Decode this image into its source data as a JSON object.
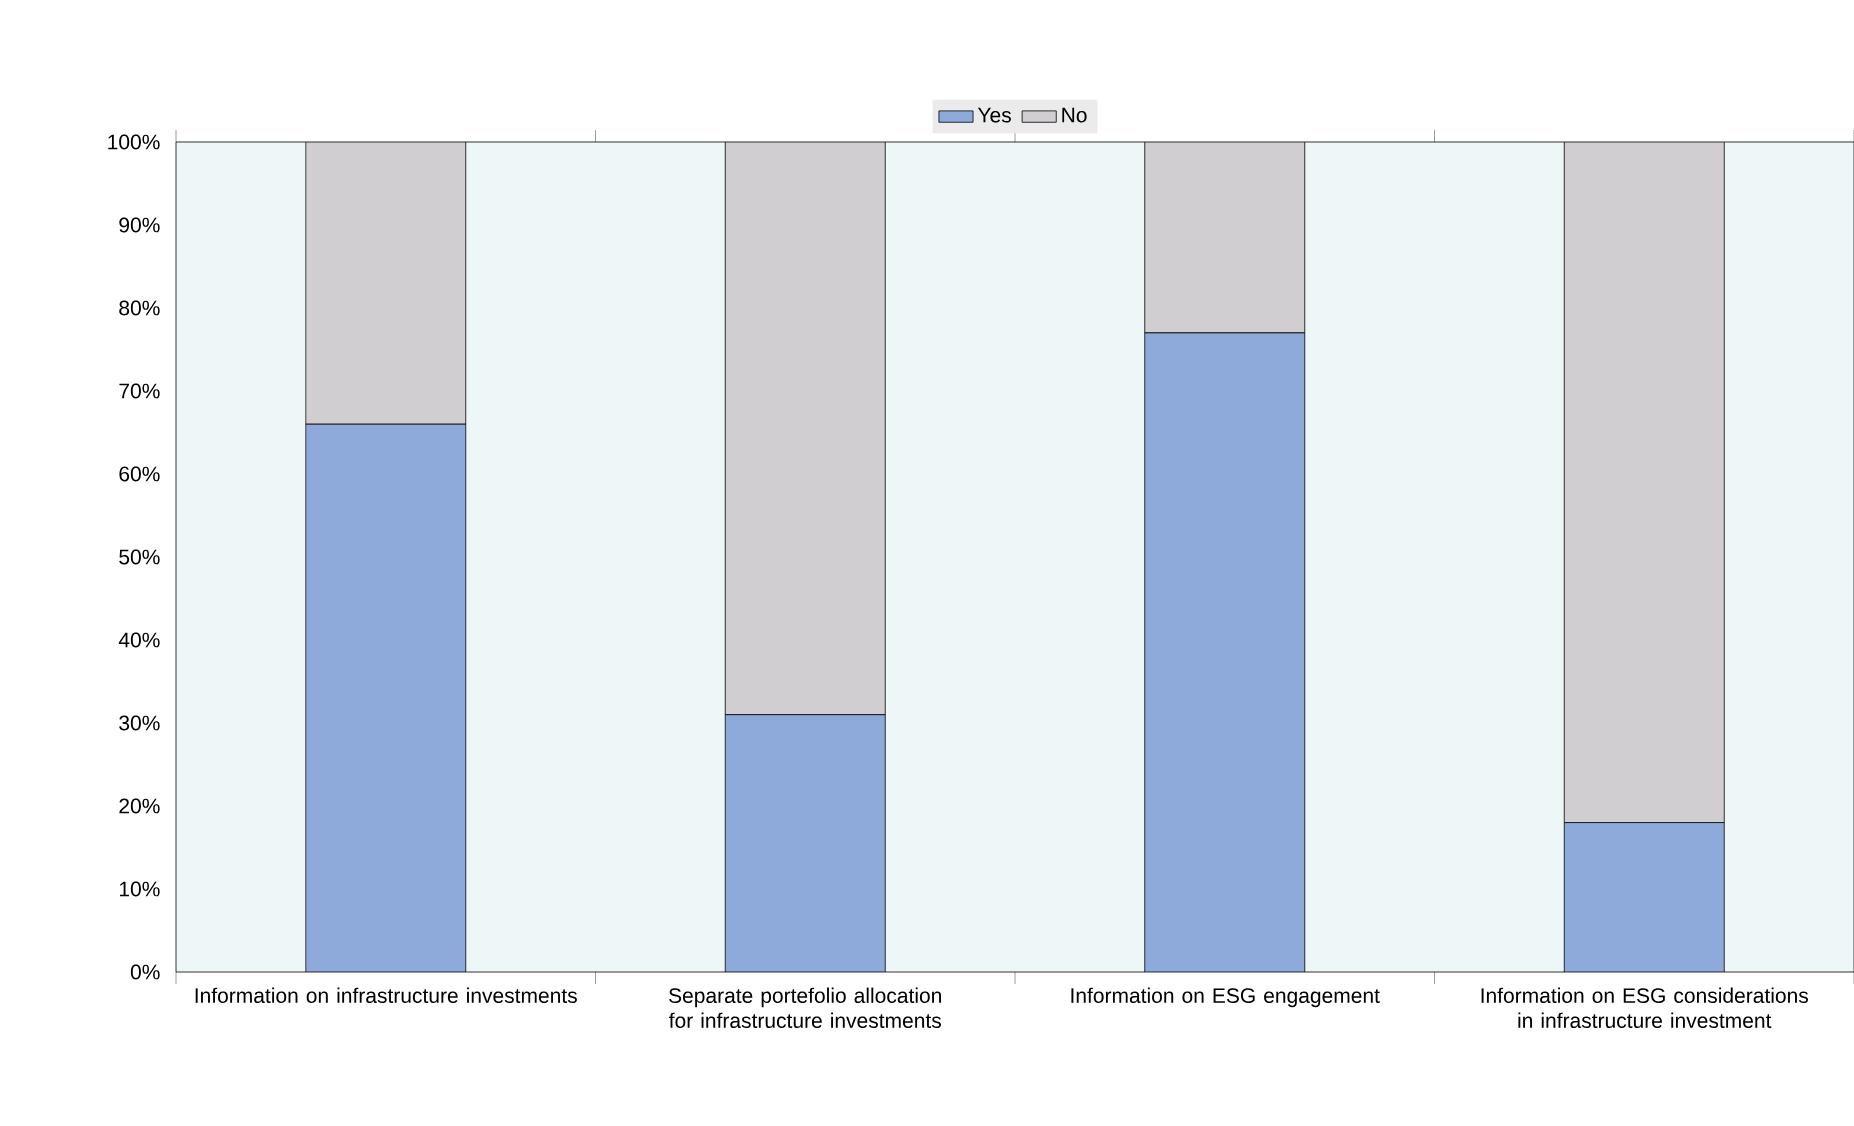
{
  "chart_data": {
    "type": "bar",
    "stacked": true,
    "categories": [
      "Information on infrastructure investments",
      "Separate portefolio allocation for infrastructure investments",
      "Information on ESG engagement",
      "Information on ESG considerations in infrastructure investment"
    ],
    "series": [
      {
        "name": "Yes",
        "color": "#8eaadb",
        "values": [
          66,
          31,
          77,
          18
        ]
      },
      {
        "name": "No",
        "color": "#d0ced0",
        "values": [
          34,
          69,
          23,
          82
        ]
      }
    ],
    "ylim": [
      0,
      100
    ],
    "yticks": [
      {
        "value": 0,
        "label": "0%"
      },
      {
        "value": 10,
        "label": "10%"
      },
      {
        "value": 20,
        "label": "20%"
      },
      {
        "value": 30,
        "label": "30%"
      },
      {
        "value": 40,
        "label": "40%"
      },
      {
        "value": 50,
        "label": "50%"
      },
      {
        "value": 60,
        "label": "60%"
      },
      {
        "value": 70,
        "label": "70%"
      },
      {
        "value": 80,
        "label": "80%"
      },
      {
        "value": 90,
        "label": "90%"
      },
      {
        "value": 100,
        "label": "100%"
      }
    ],
    "legend": "top",
    "grid": false
  }
}
